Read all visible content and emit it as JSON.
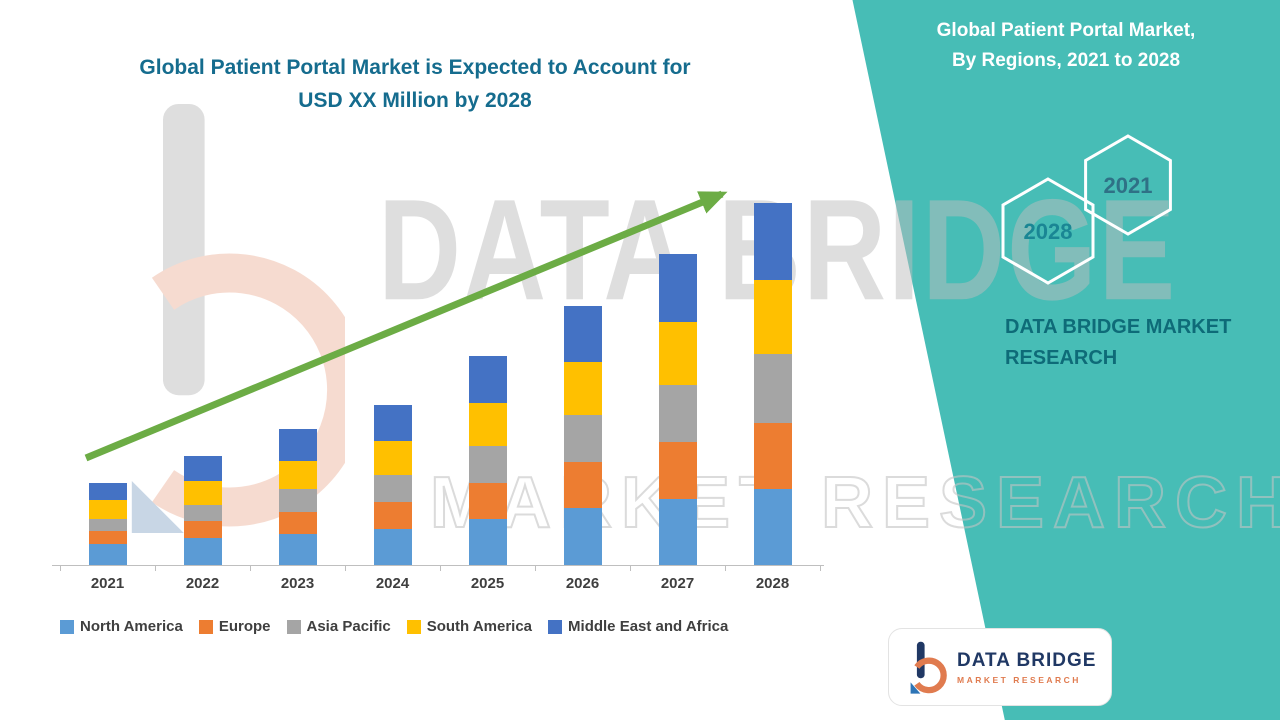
{
  "left_chart": {
    "title_line1": "Global Patient Portal Market is Expected to Account for",
    "title_line2": "USD XX Million by 2028"
  },
  "watermark": {
    "brand": "DATA BRIDGE",
    "sub": "MARKET RESEARCH"
  },
  "right_panel": {
    "title_line1": "Global Patient Portal Market,",
    "title_line2": "By Regions, 2021 to 2028",
    "hexagon_years": [
      "2028",
      "2021"
    ],
    "brand_line1": "DATA BRIDGE MARKET",
    "brand_line2": "RESEARCH"
  },
  "logo_card": {
    "brand": "DATA BRIDGE",
    "sub": "MARKET RESEARCH"
  },
  "colors": {
    "teal_panel": "#47BDB6",
    "chart_title": "#156C8E",
    "trend_arrow": "#6CAC45",
    "axis": "#BFBFBF",
    "label_text": "#3F3F3F",
    "brand_navy": "#203864",
    "brand_orange": "#E07B4F",
    "brand_teal_dark": "#0E6B78"
  },
  "chart_data": {
    "type": "bar",
    "stacked": true,
    "title": "Global Patient Portal Market is Expected to Account for USD XX Million by 2028",
    "xlabel": "",
    "ylabel": "",
    "units": "USD Million (values masked as XX)",
    "ylim": [
      0,
      400
    ],
    "grid": false,
    "legend_position": "bottom",
    "trend_arrow": true,
    "categories": [
      "2021",
      "2022",
      "2023",
      "2024",
      "2025",
      "2026",
      "2027",
      "2028"
    ],
    "series": [
      {
        "name": "North America",
        "color": "#5B9BD5",
        "values": [
          22,
          28,
          33,
          38,
          48,
          60,
          70,
          80
        ]
      },
      {
        "name": "Europe",
        "color": "#ED7D31",
        "values": [
          14,
          18,
          23,
          28,
          38,
          48,
          59,
          70
        ]
      },
      {
        "name": "Asia Pacific",
        "color": "#A5A5A5",
        "values": [
          12,
          17,
          24,
          29,
          39,
          50,
          60,
          72
        ]
      },
      {
        "name": "South America",
        "color": "#FFC000",
        "values": [
          20,
          25,
          30,
          36,
          46,
          56,
          67,
          78
        ]
      },
      {
        "name": "Middle East and Africa",
        "color": "#4472C4",
        "values": [
          18,
          27,
          33,
          37,
          49,
          59,
          71,
          81
        ]
      }
    ]
  }
}
